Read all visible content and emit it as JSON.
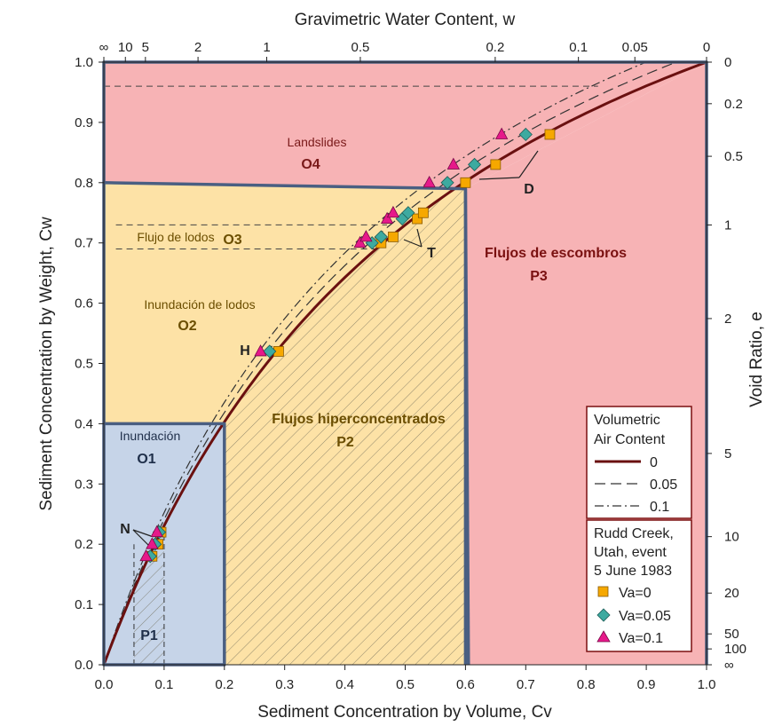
{
  "chart_data": {
    "type": "line",
    "xlabel": "Sediment Concentration by Volume, Cv",
    "ylabel": "Sediment Concentration by Weight, Cw",
    "top_label": "Gravimetric Water Content, w",
    "right_label": "Void Ratio, e",
    "xlim": [
      0,
      1
    ],
    "ylim": [
      0,
      1
    ],
    "x_ticks": [
      "0.0",
      "0.1",
      "0.2",
      "0.3",
      "0.4",
      "0.5",
      "0.6",
      "0.7",
      "0.8",
      "0.9",
      "1.0"
    ],
    "y_ticks": [
      "0.0",
      "0.1",
      "0.2",
      "0.3",
      "0.4",
      "0.5",
      "0.6",
      "0.7",
      "0.8",
      "0.9",
      "1.0"
    ],
    "top_ticks": [
      {
        "label": "∞",
        "w": null
      },
      {
        "label": "10",
        "w": 10
      },
      {
        "label": "5",
        "w": 5
      },
      {
        "label": "2",
        "w": 2
      },
      {
        "label": "1",
        "w": 1
      },
      {
        "label": "0.5",
        "w": 0.5
      },
      {
        "label": "0.2",
        "w": 0.2
      },
      {
        "label": "0.1",
        "w": 0.1
      },
      {
        "label": "0.05",
        "w": 0.05
      },
      {
        "label": "0",
        "w": 0
      }
    ],
    "right_ticks": [
      {
        "label": "0",
        "e": 0
      },
      {
        "label": "0.2",
        "e": 0.2
      },
      {
        "label": "0.5",
        "e": 0.5
      },
      {
        "label": "1",
        "e": 1
      },
      {
        "label": "2",
        "e": 2
      },
      {
        "label": "5",
        "e": 5
      },
      {
        "label": "10",
        "e": 10
      },
      {
        "label": "20",
        "e": 20
      },
      {
        "label": "50",
        "e": 50
      },
      {
        "label": "100",
        "e": 100
      },
      {
        "label": "∞",
        "e": null
      }
    ],
    "regions": [
      {
        "id": "O4",
        "name": "Landslides",
        "code": "O4",
        "color": "#f7b3b5",
        "polygon": [
          [
            0,
            0.8
          ],
          [
            0,
            1
          ],
          [
            1,
            1
          ],
          [
            0.6,
            0.79
          ]
        ]
      },
      {
        "id": "P3",
        "name": "Flujos de escombros",
        "code": "P3",
        "color": "#f7b3b5",
        "polygon": [
          [
            0.6,
            0.79
          ],
          [
            1,
            1
          ],
          [
            1,
            0
          ],
          [
            0.6,
            0
          ]
        ]
      },
      {
        "id": "O2O3",
        "name": "Inundación de lodos",
        "code": "O2",
        "color": "#fde2a6",
        "polygon": [
          [
            0,
            0.8
          ],
          [
            0.6,
            0.79
          ],
          [
            0.6,
            0
          ],
          [
            0.2,
            0
          ],
          [
            0.2,
            0.4
          ],
          [
            0,
            0.4
          ]
        ]
      },
      {
        "id": "O1",
        "name": "Inundación",
        "code": "O1",
        "color": "#c6d4e8",
        "polygon": [
          [
            0,
            0
          ],
          [
            0,
            0.4
          ],
          [
            0.2,
            0.4
          ],
          [
            0.2,
            0
          ]
        ]
      }
    ],
    "region_labels": {
      "O3_name": "Flujo de lodos",
      "O3_code": "O3",
      "P2_name": "Flujos hiperconcentrados",
      "P2_code": "P2",
      "P1_code": "P1"
    },
    "point_labels": {
      "N": "N",
      "H": "H",
      "T": "T",
      "D": "D"
    },
    "legend_air": {
      "title_line1": "Volumetric",
      "title_line2": "Air Content",
      "entries": [
        {
          "label": "0",
          "style": "solid"
        },
        {
          "label": "0.05",
          "style": "dashed"
        },
        {
          "label": "0.1",
          "style": "dashdot"
        }
      ]
    },
    "legend_event": {
      "title_line1": "Rudd Creek,",
      "title_line2": "Utah, event",
      "title_line3": "5 June 1983",
      "entries": [
        {
          "label": "Va=0",
          "marker": "square",
          "color": "#f6a800"
        },
        {
          "label": "Va=0.05",
          "marker": "diamond",
          "color": "#3daaa0"
        },
        {
          "label": "Va=0.1",
          "marker": "triangle",
          "color": "#e6198a"
        }
      ]
    },
    "series": [
      {
        "label": "Va=0",
        "marker": "square",
        "color": "#f6a800",
        "points": [
          [
            0.08,
            0.18
          ],
          [
            0.09,
            0.2
          ],
          [
            0.095,
            0.22
          ],
          [
            0.29,
            0.52
          ],
          [
            0.46,
            0.7
          ],
          [
            0.48,
            0.71
          ],
          [
            0.52,
            0.74
          ],
          [
            0.53,
            0.75
          ],
          [
            0.6,
            0.8
          ],
          [
            0.65,
            0.83
          ],
          [
            0.74,
            0.88
          ]
        ]
      },
      {
        "label": "Va=0.05",
        "marker": "diamond",
        "color": "#3daaa0",
        "points": [
          [
            0.077,
            0.18
          ],
          [
            0.085,
            0.2
          ],
          [
            0.092,
            0.22
          ],
          [
            0.275,
            0.52
          ],
          [
            0.445,
            0.7
          ],
          [
            0.46,
            0.71
          ],
          [
            0.495,
            0.74
          ],
          [
            0.505,
            0.75
          ],
          [
            0.57,
            0.8
          ],
          [
            0.615,
            0.83
          ],
          [
            0.7,
            0.88
          ]
        ]
      },
      {
        "label": "Va=0.1",
        "marker": "triangle",
        "color": "#e6198a",
        "points": [
          [
            0.07,
            0.18
          ],
          [
            0.08,
            0.2
          ],
          [
            0.088,
            0.22
          ],
          [
            0.26,
            0.52
          ],
          [
            0.425,
            0.7
          ],
          [
            0.435,
            0.71
          ],
          [
            0.47,
            0.74
          ],
          [
            0.48,
            0.75
          ],
          [
            0.54,
            0.8
          ],
          [
            0.58,
            0.83
          ],
          [
            0.66,
            0.88
          ]
        ]
      }
    ]
  }
}
